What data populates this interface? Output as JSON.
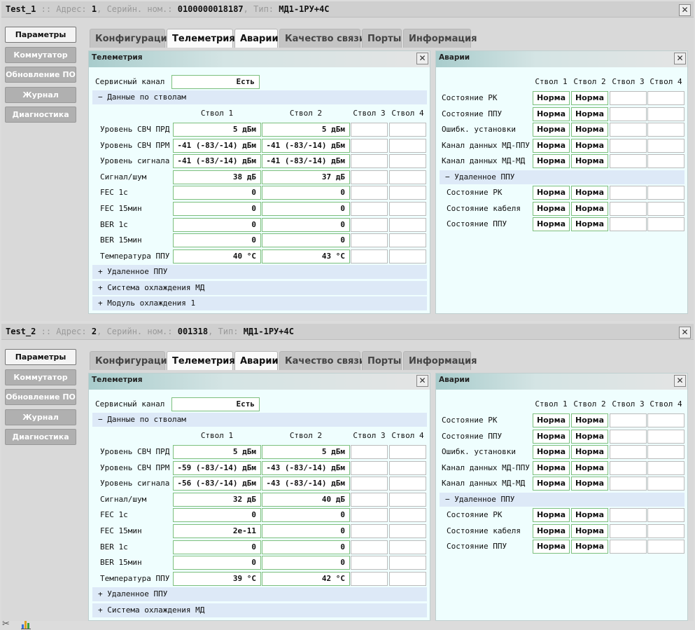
{
  "nav": [
    "Параметры",
    "Коммутатор",
    "Обновление ПО",
    "Журнал",
    "Диагностика"
  ],
  "tabs": [
    "Конфигурация",
    "Телеметрия",
    "Аварии",
    "Качество связи",
    "Порты",
    "Информация"
  ],
  "labels": {
    "addr": "Адрес:",
    "serial": "Серийн. ном.:",
    "type": "Тип:",
    "sep": "::",
    "comma": ","
  },
  "tele": {
    "title": "Телеметрия",
    "service_label": "Сервисный канал",
    "trunks_section": "− Данные по стволам",
    "cols": [
      "Ствол 1",
      "Ствол 2",
      "Ствол 3",
      "Ствол 4"
    ],
    "rows": [
      "Уровень СВЧ ПРД",
      "Уровень СВЧ ПРМ",
      "Уровень сигнала",
      "Сигнал/шум",
      "FEC 1с",
      "FEC 15мин",
      "BER 1с",
      "BER 15мин",
      "Температура ППУ"
    ]
  },
  "alarms": {
    "title": "Аварии",
    "cols": [
      "Ствол 1",
      "Ствол 2",
      "Ствол 3",
      "Ствол 4"
    ],
    "rows": [
      "Состояние РК",
      "Состояние ППУ",
      "Ошибк. установки",
      "Канал данных МД-ППУ",
      "Канал данных МД-МД"
    ],
    "remote_section": "− Удаленное ППУ",
    "remote_rows": [
      "Состояние РК",
      "Состояние кабеля",
      "Состояние ППУ"
    ],
    "state": "Норма"
  },
  "devices": [
    {
      "name": "Test_1",
      "address": "1",
      "serial": "0100000018187",
      "type": "МД1-1РУ+4С",
      "service": "Есть",
      "values": [
        [
          "5 дБм",
          "5 дБм"
        ],
        [
          "-41 (-83/-14) дБм",
          "-41 (-83/-14) дБм"
        ],
        [
          "-41 (-83/-14) дБм",
          "-41 (-83/-14) дБм"
        ],
        [
          "38 дБ",
          "37 дБ"
        ],
        [
          "0",
          "0"
        ],
        [
          "0",
          "0"
        ],
        [
          "0",
          "0"
        ],
        [
          "0",
          "0"
        ],
        [
          "40 °C",
          "43 °C"
        ]
      ],
      "extra_sections": [
        "+ Удаленное ППУ",
        "+ Система охлаждения МД",
        "+ Модуль охлаждения 1"
      ]
    },
    {
      "name": "Test_2",
      "address": "2",
      "serial": "001318",
      "type": "МД1-1РУ+4С",
      "service": "Есть",
      "values": [
        [
          "5 дБм",
          "5 дБм"
        ],
        [
          "-59 (-83/-14) дБм",
          "-43 (-83/-14) дБм"
        ],
        [
          "-56 (-83/-14) дБм",
          "-43 (-83/-14) дБм"
        ],
        [
          "32 дБ",
          "40 дБ"
        ],
        [
          "0",
          "0"
        ],
        [
          "2e-11",
          "0"
        ],
        [
          "0",
          "0"
        ],
        [
          "0",
          "0"
        ],
        [
          "39 °C",
          "42 °C"
        ]
      ],
      "extra_sections": [
        "+ Удаленное ППУ",
        "+ Система охлаждения МД"
      ]
    }
  ],
  "icons": {
    "close": "close-icon",
    "tools": "tools-icon",
    "chart": "bar-chart-icon"
  }
}
